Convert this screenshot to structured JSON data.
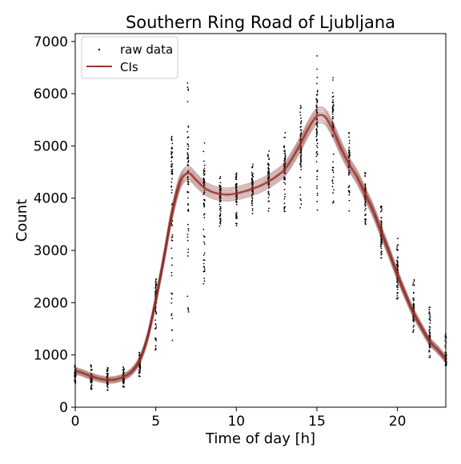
{
  "chart_data": {
    "type": "scatter",
    "title": "Southern Ring Road of Ljubljana",
    "xlabel": "Time of day [h]",
    "ylabel": "Count",
    "xlim": [
      0,
      23
    ],
    "ylim": [
      0,
      7150
    ],
    "xticks": [
      0,
      5,
      10,
      15,
      20
    ],
    "yticks": [
      0,
      1000,
      2000,
      3000,
      4000,
      5000,
      6000,
      7000
    ],
    "grid": false,
    "legend_position": "top-left",
    "legend": [
      {
        "label": "raw data",
        "marker": "point",
        "color": "#000000"
      },
      {
        "label": "CIs",
        "marker": "line",
        "color": "#a0302b"
      }
    ],
    "raw_data": [
      {
        "hour": 0,
        "min": 450,
        "max": 800,
        "median": 620
      },
      {
        "hour": 1,
        "min": 330,
        "max": 820,
        "median": 520
      },
      {
        "hour": 2,
        "min": 320,
        "max": 760,
        "median": 480
      },
      {
        "hour": 3,
        "min": 380,
        "max": 800,
        "median": 560
      },
      {
        "hour": 4,
        "min": 560,
        "max": 1050,
        "median": 820
      },
      {
        "hour": 5,
        "min": 920,
        "max": 2450,
        "median": 2150
      },
      {
        "hour": 6,
        "min": 1200,
        "max": 5180,
        "median": 4700
      },
      {
        "hour": 7,
        "min": 1800,
        "max": 6220,
        "median": 4600
      },
      {
        "hour": 8,
        "min": 2350,
        "max": 5250,
        "median": 4300
      },
      {
        "hour": 9,
        "min": 3450,
        "max": 4480,
        "median": 4100
      },
      {
        "hour": 10,
        "min": 3450,
        "max": 4520,
        "median": 4150
      },
      {
        "hour": 11,
        "min": 3650,
        "max": 4650,
        "median": 4250
      },
      {
        "hour": 12,
        "min": 3750,
        "max": 4950,
        "median": 4400
      },
      {
        "hour": 13,
        "min": 3700,
        "max": 5300,
        "median": 4600
      },
      {
        "hour": 14,
        "min": 3800,
        "max": 5900,
        "median": 5000
      },
      {
        "hour": 15,
        "min": 3650,
        "max": 6780,
        "median": 5550
      },
      {
        "hour": 16,
        "min": 3800,
        "max": 6420,
        "median": 5500
      },
      {
        "hour": 17,
        "min": 3750,
        "max": 5280,
        "median": 4700
      },
      {
        "hour": 18,
        "min": 3450,
        "max": 4520,
        "median": 4050
      },
      {
        "hour": 19,
        "min": 2800,
        "max": 3950,
        "median": 3300
      },
      {
        "hour": 20,
        "min": 2050,
        "max": 3250,
        "median": 2600
      },
      {
        "hour": 21,
        "min": 1420,
        "max": 2460,
        "median": 1800
      },
      {
        "hour": 22,
        "min": 950,
        "max": 1920,
        "median": 1300
      },
      {
        "hour": 23,
        "min": 760,
        "max": 1400,
        "median": 950
      }
    ],
    "ci_curve": {
      "x": [
        0,
        0.5,
        1,
        1.5,
        2,
        2.5,
        3,
        3.5,
        4,
        4.5,
        5,
        5.5,
        6,
        6.5,
        7,
        7.5,
        8,
        8.5,
        9,
        9.5,
        10,
        10.5,
        11,
        11.5,
        12,
        12.5,
        13,
        13.5,
        14,
        14.5,
        15,
        15.5,
        16,
        16.5,
        17,
        17.5,
        18,
        18.5,
        19,
        19.5,
        20,
        20.5,
        21,
        21.5,
        22,
        22.5,
        23
      ],
      "y": [
        700,
        650,
        590,
        545,
        520,
        530,
        580,
        680,
        900,
        1350,
        2050,
        2850,
        3700,
        4300,
        4480,
        4350,
        4200,
        4120,
        4080,
        4070,
        4090,
        4130,
        4180,
        4240,
        4320,
        4420,
        4550,
        4780,
        5050,
        5350,
        5570,
        5560,
        5300,
        4950,
        4650,
        4400,
        4080,
        3750,
        3350,
        2950,
        2530,
        2150,
        1800,
        1520,
        1260,
        1100,
        920
      ]
    }
  }
}
